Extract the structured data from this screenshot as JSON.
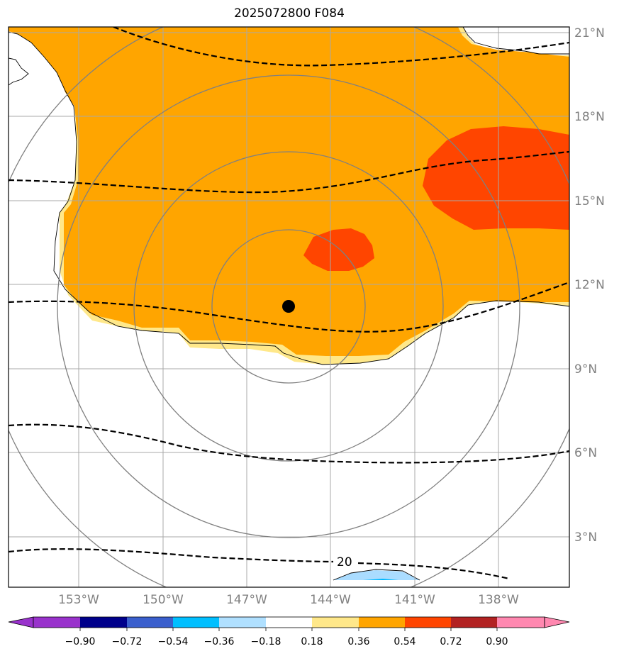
{
  "title": "2025072800 F084",
  "map": {
    "lat_labels": [
      "21°N",
      "18°N",
      "15°N",
      "12°N",
      "9°N",
      "6°N",
      "3°N"
    ],
    "lon_labels": [
      "153°W",
      "150°W",
      "147°W",
      "144°W",
      "141°W",
      "138°W"
    ],
    "contour_label": "20",
    "storm_center": {
      "lon": "145.5°W",
      "lat": "11.2°N"
    },
    "colors": {
      "ocean_land_background": "#ffffff",
      "fill_0_18_0_36": "#ffe88a",
      "fill_0_36_0_54": "#ffa500",
      "fill_0_54_0_72": "#ff4500",
      "fill_neg_0_36_neg_0_18": "#aadcff",
      "fill_neg_0_54_neg_0_36": "#00b8ff",
      "gridline": "#a9a9a9",
      "range_ring": "#808080",
      "contour": "#000000"
    }
  },
  "colorbar": {
    "ticks": [
      "−0.90",
      "−0.72",
      "−0.54",
      "−0.36",
      "−0.18",
      "0.18",
      "0.36",
      "0.54",
      "0.72",
      "0.90"
    ],
    "colors": [
      "#9932cc",
      "#00008b",
      "#3a5fcd",
      "#00bfff",
      "#b0e0ff",
      "#ffffff",
      "#ffe88a",
      "#ffa500",
      "#ff4500",
      "#b22222",
      "#ff88b0"
    ]
  }
}
